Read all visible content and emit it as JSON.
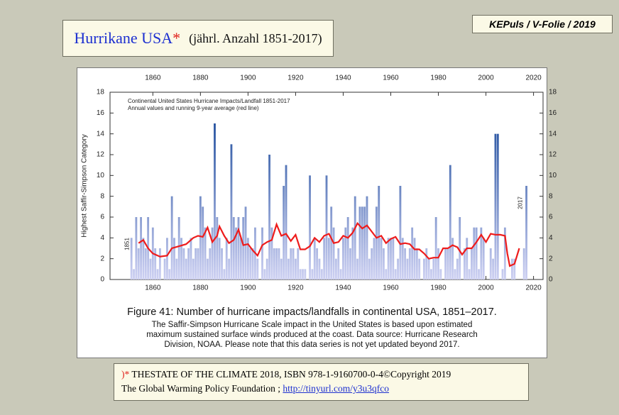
{
  "header": {
    "title": "Hurrikane USA",
    "marker": "*",
    "subtitle": "(jährl. Anzahl 1851-2017)"
  },
  "tag": "KEPuls / V-Folie / 2019",
  "chart_data": {
    "type": "bar",
    "ylabel": "Highest Saffir-Simpson Category",
    "annotations": [
      "Continental United States Hurricane Impacts/Landfall 1851-2017",
      "Annual values and running 9-year average (red line)"
    ],
    "x": [
      1851,
      1852,
      1853,
      1854,
      1855,
      1856,
      1857,
      1858,
      1859,
      1860,
      1861,
      1862,
      1863,
      1864,
      1865,
      1866,
      1867,
      1868,
      1869,
      1870,
      1871,
      1872,
      1873,
      1874,
      1875,
      1876,
      1877,
      1878,
      1879,
      1880,
      1881,
      1882,
      1883,
      1884,
      1885,
      1886,
      1887,
      1888,
      1889,
      1890,
      1891,
      1892,
      1893,
      1894,
      1895,
      1896,
      1897,
      1898,
      1899,
      1900,
      1901,
      1902,
      1903,
      1904,
      1905,
      1906,
      1907,
      1908,
      1909,
      1910,
      1911,
      1912,
      1913,
      1914,
      1915,
      1916,
      1917,
      1918,
      1919,
      1920,
      1921,
      1922,
      1923,
      1924,
      1925,
      1926,
      1927,
      1928,
      1929,
      1930,
      1931,
      1932,
      1933,
      1934,
      1935,
      1936,
      1937,
      1938,
      1939,
      1940,
      1941,
      1942,
      1943,
      1944,
      1945,
      1946,
      1947,
      1948,
      1949,
      1950,
      1951,
      1952,
      1953,
      1954,
      1955,
      1956,
      1957,
      1958,
      1959,
      1960,
      1961,
      1962,
      1963,
      1964,
      1965,
      1966,
      1967,
      1968,
      1969,
      1970,
      1971,
      1972,
      1973,
      1974,
      1975,
      1976,
      1977,
      1978,
      1979,
      1980,
      1981,
      1982,
      1983,
      1984,
      1985,
      1986,
      1987,
      1988,
      1989,
      1990,
      1991,
      1992,
      1993,
      1994,
      1995,
      1996,
      1997,
      1998,
      1999,
      2000,
      2001,
      2002,
      2003,
      2004,
      2005,
      2006,
      2007,
      2008,
      2009,
      2010,
      2011,
      2012,
      2013,
      2014,
      2015,
      2016,
      2017
    ],
    "values": [
      4,
      1,
      6,
      3,
      6,
      4,
      3,
      6,
      2,
      5,
      3,
      1,
      3,
      0,
      2,
      4,
      1,
      8,
      4,
      2,
      6,
      4,
      3,
      2,
      3,
      4,
      2,
      3,
      3,
      8,
      7,
      5,
      2,
      3,
      5,
      15,
      6,
      4,
      3,
      1,
      4,
      2,
      13,
      6,
      5,
      6,
      4,
      6,
      7,
      4,
      3,
      3,
      5,
      2,
      0,
      5,
      1,
      2,
      12,
      5,
      3,
      3,
      3,
      2,
      9,
      11,
      2,
      3,
      3,
      2,
      3,
      1,
      1,
      1,
      0,
      10,
      1,
      4,
      3,
      2,
      1,
      4,
      10,
      4,
      7,
      5,
      2,
      3,
      1,
      4,
      5,
      6,
      3,
      5,
      8,
      2,
      7,
      7,
      7,
      8,
      2,
      3,
      4,
      7,
      9,
      4,
      3,
      1,
      4,
      4,
      4,
      1,
      2,
      9,
      4,
      3,
      2,
      3,
      5,
      4,
      3,
      2,
      0,
      2,
      3,
      2,
      1,
      2,
      6,
      3,
      1,
      0,
      3,
      3,
      11,
      4,
      1,
      2,
      6,
      0,
      3,
      4,
      1,
      3,
      5,
      5,
      1,
      5,
      4,
      0,
      0,
      3,
      2,
      14,
      14,
      0,
      1,
      5,
      0,
      0,
      2,
      2,
      0,
      0,
      0,
      3,
      9
    ],
    "bar_colors": [
      "#cdd0f2",
      "#1d4c9c"
    ],
    "line": {
      "color": "#ee1c1c",
      "x": [
        1854,
        1856,
        1858,
        1860,
        1863,
        1866,
        1868,
        1871,
        1874,
        1877,
        1879,
        1881,
        1883,
        1885,
        1887,
        1888,
        1890,
        1892,
        1894,
        1896,
        1898,
        1900,
        1902,
        1904,
        1906,
        1908,
        1910,
        1912,
        1914,
        1916,
        1918,
        1920,
        1922,
        1924,
        1926,
        1928,
        1930,
        1932,
        1934,
        1936,
        1938,
        1940,
        1942,
        1944,
        1946,
        1948,
        1950,
        1952,
        1954,
        1956,
        1958,
        1960,
        1962,
        1964,
        1966,
        1968,
        1970,
        1972,
        1974,
        1976,
        1978,
        1980,
        1982,
        1984,
        1986,
        1988,
        1990,
        1992,
        1994,
        1996,
        1998,
        2000,
        2002,
        2004,
        2006,
        2008,
        2009,
        2010,
        2012,
        2014
      ],
      "values": [
        3.5,
        3.8,
        3.0,
        2.5,
        2.2,
        2.3,
        3.0,
        3.2,
        3.4,
        4.0,
        4.2,
        4.1,
        5.0,
        3.6,
        4.2,
        5.1,
        4.2,
        3.5,
        3.8,
        4.8,
        3.3,
        3.4,
        2.8,
        2.3,
        3.3,
        3.6,
        3.8,
        5.3,
        4.2,
        4.4,
        3.7,
        4.3,
        2.9,
        2.9,
        3.2,
        4.0,
        3.6,
        4.2,
        4.4,
        3.5,
        3.6,
        4.2,
        4.0,
        4.5,
        5.4,
        4.9,
        5.2,
        4.6,
        4.0,
        4.2,
        3.5,
        3.9,
        4.1,
        3.4,
        3.5,
        3.4,
        2.9,
        2.9,
        2.5,
        2.0,
        2.1,
        2.1,
        3.0,
        3.0,
        3.3,
        3.1,
        2.4,
        3.0,
        3.0,
        3.6,
        4.3,
        3.6,
        4.4,
        4.3,
        4.3,
        4.2,
        2.5,
        1.3,
        1.5,
        3.0
      ]
    },
    "xlim": [
      1842,
      2024
    ],
    "xticks": [
      1860,
      1880,
      1900,
      1920,
      1940,
      1960,
      1980,
      2000,
      2020
    ],
    "ylim": [
      0,
      18
    ],
    "yticks": [
      0,
      2,
      4,
      6,
      8,
      10,
      12,
      14,
      16,
      18
    ]
  },
  "caption": {
    "title": "Figure 41: Number of hurricane impacts/landfalls in continental USA, 1851–2017.",
    "lines": [
      "The Saffir-Simpson Hurricane Scale impact in the United States is based upon estimated",
      "maximum sustained surface winds produced at the coast. Data source: Hurricane Research",
      "Division, NOAA. Please note that this data series is not yet updated beyond 2017."
    ]
  },
  "source": {
    "marker": ")*",
    "line1": "THESTATE OF THE CLIMATE 2018, ISBN 978-1-9160700-0-4©Copyright 2019",
    "line2": "The Global Warming Policy Foundation ;",
    "link": "http://tinyurl.com/y3u3qfco"
  }
}
